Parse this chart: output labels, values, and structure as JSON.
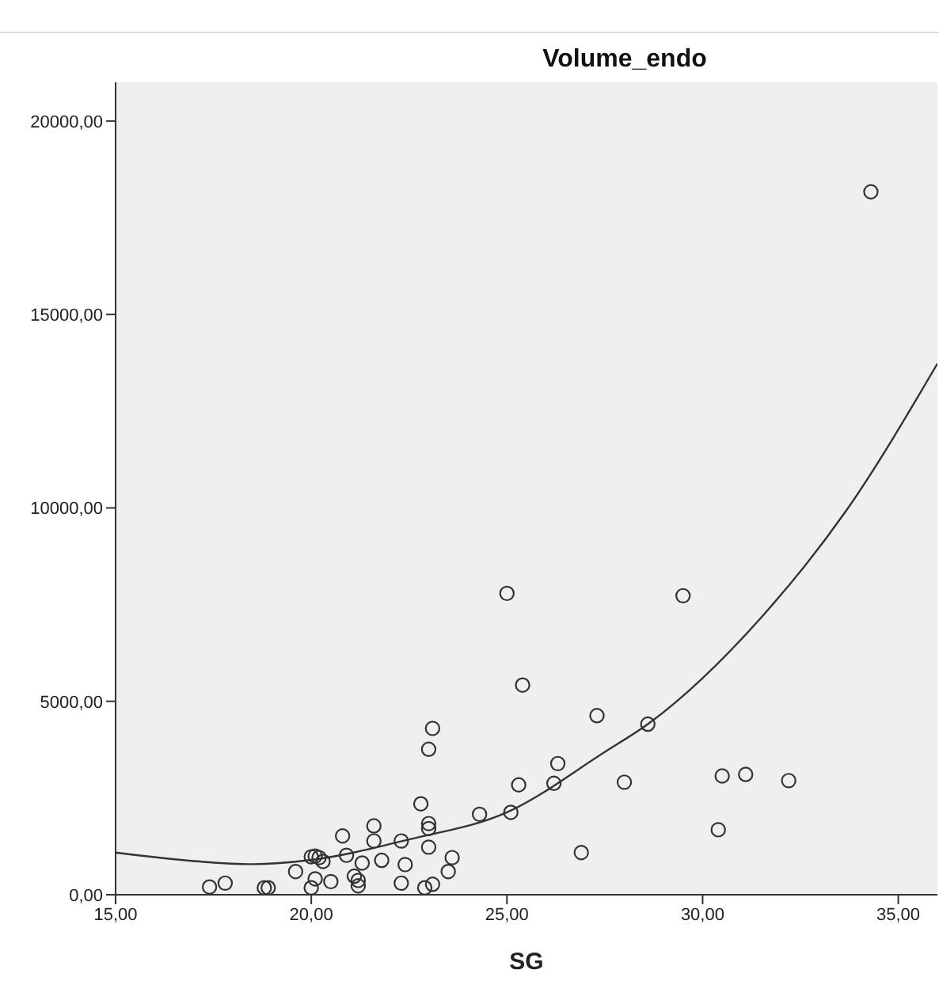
{
  "chart_data": {
    "type": "scatter",
    "title": "Volume_endo",
    "xlabel": "SG",
    "xlim": [
      15,
      36
    ],
    "xticks": [
      {
        "value": 15,
        "label": "15,00"
      },
      {
        "value": 20,
        "label": "20,00"
      },
      {
        "value": 25,
        "label": "25,00"
      },
      {
        "value": 30,
        "label": "30,00"
      },
      {
        "value": 35,
        "label": "35,00"
      }
    ],
    "ylim": [
      0,
      21000
    ],
    "yticks": [
      {
        "value": 0,
        "label": "0,00"
      },
      {
        "value": 5000,
        "label": "5000,00"
      },
      {
        "value": 10000,
        "label": "10000,00"
      },
      {
        "value": 15000,
        "label": "15000,00"
      },
      {
        "value": 20000,
        "label": "20000,00"
      }
    ],
    "grid": false,
    "marker": "circle",
    "series": [
      {
        "color": "#333333",
        "x": [
          34.3,
          25.0,
          29.5,
          25.4,
          27.3,
          28.6,
          26.3,
          25.3,
          26.2,
          28.0,
          30.5,
          31.1,
          32.2,
          30.4,
          26.9,
          25.1,
          24.3,
          17.4,
          17.8,
          18.8,
          18.9,
          19.6,
          20.0,
          20.1,
          20.5,
          20.0,
          20.1,
          20.2,
          20.3,
          20.8,
          20.9,
          21.1,
          21.2,
          21.2,
          21.3,
          21.6,
          21.6,
          21.8,
          22.3,
          22.3,
          22.4,
          22.8,
          22.9,
          23.1,
          23.0,
          23.1,
          23.0,
          23.0,
          23.0,
          23.5,
          23.6
        ],
        "values": [
          18170,
          7790,
          7730,
          5420,
          4630,
          4410,
          3390,
          2840,
          2880,
          2910,
          3070,
          3110,
          2950,
          1680,
          1090,
          2130,
          2080,
          200,
          300,
          180,
          180,
          600,
          180,
          410,
          340,
          980,
          1000,
          960,
          860,
          1520,
          1020,
          480,
          370,
          230,
          820,
          1780,
          1390,
          890,
          1390,
          300,
          780,
          2350,
          180,
          270,
          3760,
          4300,
          1840,
          1710,
          1230,
          600,
          960
        ]
      },
      {
        "type": "line",
        "color": "#333333",
        "marker": "none",
        "x": [
          15,
          17,
          18.5,
          20,
          22.5,
          25,
          27.5,
          28.6,
          31.5,
          33.65,
          36
        ],
        "values": [
          1090,
          870,
          790,
          900,
          1430,
          2130,
          3690,
          4410,
          7170,
          9900,
          13730
        ]
      }
    ]
  }
}
